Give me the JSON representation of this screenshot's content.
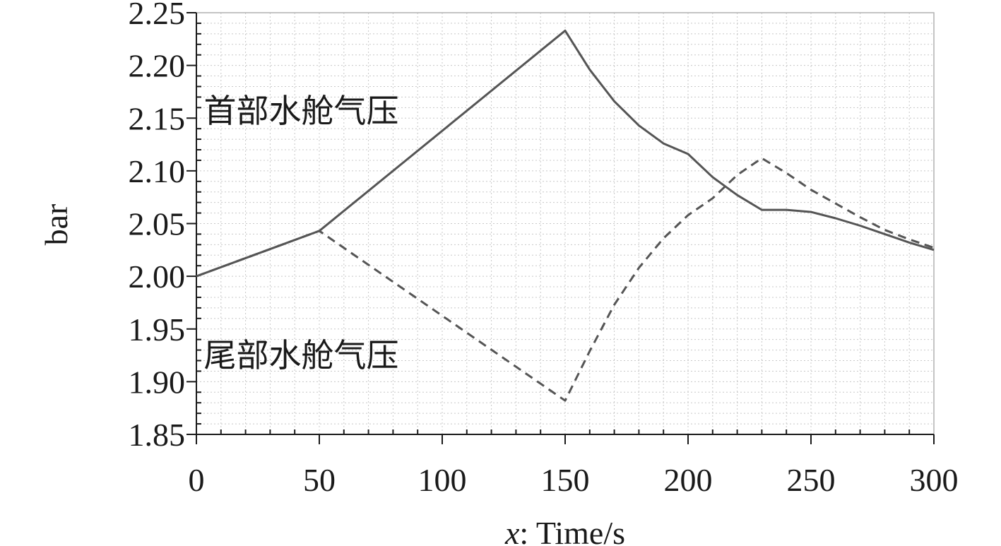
{
  "chart_data": {
    "type": "line",
    "title": "",
    "xlabel_var": "x",
    "xlabel_text": ": Time/s",
    "ylabel": "bar",
    "xlim": [
      0,
      300
    ],
    "ylim": [
      1.85,
      2.25
    ],
    "xticks": [
      0,
      50,
      100,
      150,
      200,
      250,
      300
    ],
    "xtick_labels": [
      "0",
      "50",
      "100",
      "150",
      "200",
      "250",
      "300"
    ],
    "yticks": [
      1.85,
      1.9,
      1.95,
      2.0,
      2.05,
      2.1,
      2.15,
      2.2,
      2.25
    ],
    "ytick_labels": [
      "1.85",
      "1.90",
      "1.95",
      "2.00",
      "2.05",
      "2.10",
      "2.15",
      "2.20",
      "2.25"
    ],
    "grid": true,
    "series": [
      {
        "name": "首部水舱气压",
        "style": "solid",
        "color": "#555555",
        "x": [
          0,
          50,
          150,
          160,
          170,
          180,
          190,
          200,
          210,
          220,
          230,
          240,
          250,
          260,
          270,
          280,
          290,
          300
        ],
        "y": [
          2.0,
          2.043,
          2.233,
          2.196,
          2.166,
          2.143,
          2.126,
          2.116,
          2.094,
          2.077,
          2.063,
          2.063,
          2.061,
          2.055,
          2.048,
          2.04,
          2.032,
          2.025
        ]
      },
      {
        "name": "尾部水舱气压",
        "style": "dashed",
        "color": "#555555",
        "x": [
          0,
          50,
          150,
          160,
          170,
          180,
          190,
          200,
          210,
          220,
          230,
          240,
          250,
          260,
          270,
          280,
          290,
          300
        ],
        "y": [
          2.0,
          2.043,
          1.882,
          1.929,
          1.973,
          2.008,
          2.036,
          2.058,
          2.074,
          2.096,
          2.112,
          2.098,
          2.082,
          2.069,
          2.056,
          2.044,
          2.035,
          2.027
        ]
      }
    ],
    "annotations": [
      {
        "text": "首部水舱气压",
        "x": 3,
        "y": 2.157
      },
      {
        "text": "尾部水舱气压",
        "x": 3,
        "y": 1.925
      }
    ]
  }
}
